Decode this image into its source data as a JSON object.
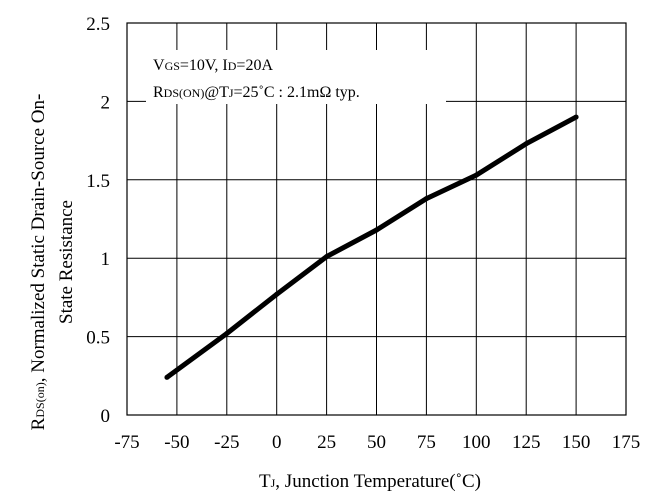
{
  "chart_data": {
    "type": "line",
    "xlabel": {
      "main": "T",
      "sub": "J",
      "rest": ", Junction Temperature(˚C)"
    },
    "ylabel": {
      "line1_main": "R",
      "line1_sub": "DS(on)",
      "line1_rest": ", Normalized Static Drain-Source On-",
      "line2": "State Resistance"
    },
    "xlim": [
      -75,
      175
    ],
    "ylim": [
      0,
      2.5
    ],
    "x_ticks": [
      "-75",
      "-50",
      "-25",
      "0",
      "25",
      "50",
      "75",
      "100",
      "125",
      "150",
      "175"
    ],
    "x_tick_values": [
      -75,
      -50,
      -25,
      0,
      25,
      50,
      75,
      100,
      125,
      150,
      175
    ],
    "y_ticks": [
      "0",
      "0.5",
      "1",
      "1.5",
      "2",
      "2.5"
    ],
    "y_tick_values": [
      0,
      0.5,
      1,
      1.5,
      2,
      2.5
    ],
    "grid": true,
    "annotations": {
      "line1": {
        "p1_main": "V",
        "p1_sub": "GS",
        "p1_rest": "=10V, I",
        "p2_sub": "D",
        "p2_rest": "=20A"
      },
      "line2": {
        "p1_main": "R",
        "p1_sub": "DS(ON)",
        "p1_rest": "@T",
        "p2_sub": "J",
        "p2_rest": "=25˚C : 2.1mΩ  typ."
      }
    },
    "series": [
      {
        "x": [
          -55,
          -25,
          0,
          25,
          50,
          75,
          100,
          125,
          150
        ],
        "y": [
          0.24,
          0.52,
          0.77,
          1.01,
          1.18,
          1.38,
          1.53,
          1.73,
          1.9
        ]
      }
    ],
    "colors": {
      "line": "#000000",
      "grid": "#000000",
      "background": "#ffffff"
    }
  }
}
